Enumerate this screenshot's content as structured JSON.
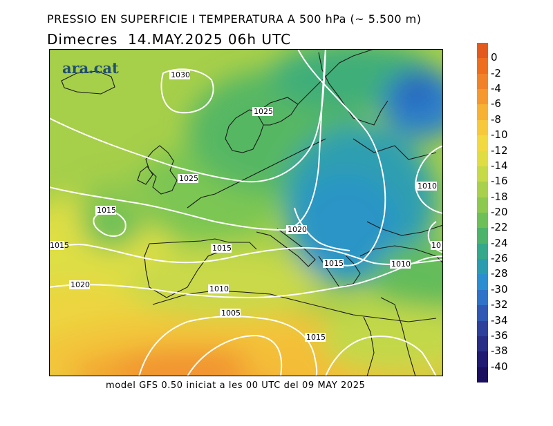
{
  "header": {
    "title": "PRESSIO EN SUPERFICIE I TEMPERATURA A 500 hPa (~ 5.500 m)",
    "date_line": "Dimecres  14.MAY.2025 06h UTC"
  },
  "logo": {
    "text": "ara.cat",
    "color": "#1f4f73"
  },
  "footer": {
    "text": "model GFS 0.50 iniciat a les 00 UTC del 09 MAY 2025"
  },
  "colorbar": {
    "labels": [
      "0",
      "-2",
      "-4",
      "-6",
      "-8",
      "-10",
      "-12",
      "-14",
      "-16",
      "-18",
      "-20",
      "-22",
      "-24",
      "-26",
      "-28",
      "-30",
      "-32",
      "-34",
      "-36",
      "-38",
      "-40"
    ],
    "colors": [
      "#e45a1c",
      "#ee6e1e",
      "#f28227",
      "#f5982e",
      "#f7b233",
      "#f7c93a",
      "#f1d93f",
      "#dfdd42",
      "#c6d947",
      "#a9d04b",
      "#8cc94e",
      "#6cc057",
      "#4cb46a",
      "#34a88a",
      "#2a9cb0",
      "#2b8ed0",
      "#2f72c9",
      "#2f58b4",
      "#2d419c",
      "#282d86",
      "#1f1a72",
      "#1a0f5e"
    ]
  },
  "isobar_labels": [
    {
      "text": "1030"
    },
    {
      "text": "1025"
    },
    {
      "text": "1025"
    },
    {
      "text": "1015"
    },
    {
      "text": "1020"
    },
    {
      "text": "1015"
    },
    {
      "text": "1015"
    },
    {
      "text": "1010"
    },
    {
      "text": "1010"
    },
    {
      "text": "1010"
    },
    {
      "text": "1005"
    },
    {
      "text": "1015"
    },
    {
      "text": "1020"
    },
    {
      "text": "1015"
    },
    {
      "text": "10"
    }
  ]
}
